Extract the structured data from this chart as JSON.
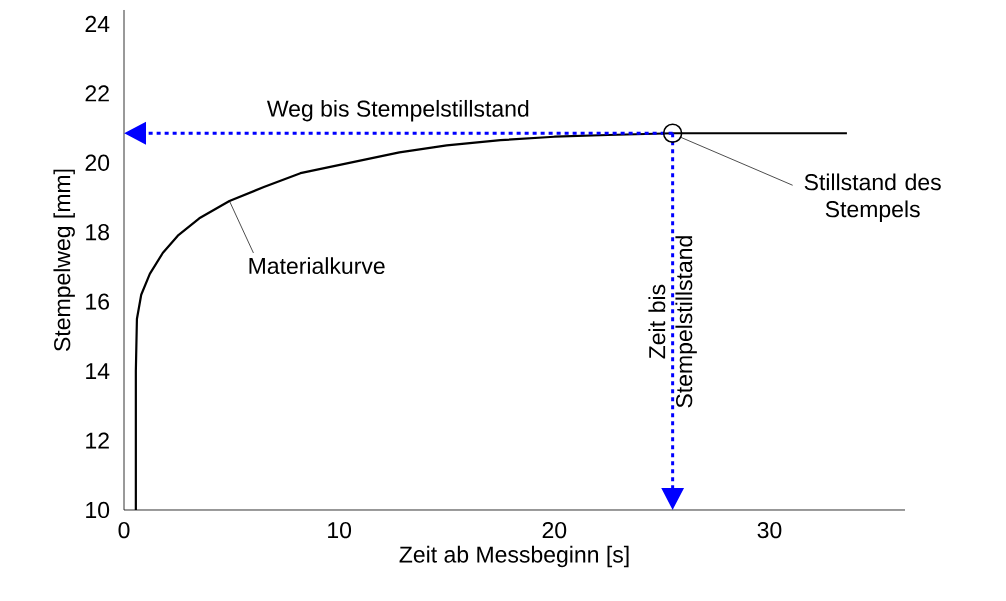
{
  "chart_data": {
    "type": "line",
    "xlabel": "Zeit ab Messbeginn [s]",
    "ylabel": "Stempelweg [mm]",
    "x": [
      0.55,
      0.55,
      0.6,
      0.8,
      1.2,
      1.8,
      2.5,
      3.5,
      4.9,
      6.5,
      8.2,
      10.5,
      12.8,
      15,
      17.5,
      20,
      22.5,
      25.5,
      29,
      33.6
    ],
    "series": [
      {
        "color": "#000000",
        "values": [
          10,
          14,
          15.5,
          16.2,
          16.8,
          17.4,
          17.9,
          18.4,
          18.9,
          19.3,
          19.7,
          20.0,
          20.3,
          20.5,
          20.65,
          20.75,
          20.8,
          20.85,
          20.85,
          20.85
        ]
      }
    ],
    "xlim": [
      0,
      36.3
    ],
    "ylim": [
      10,
      24.4
    ],
    "xticks": [
      0,
      10,
      20,
      30
    ],
    "yticks": [
      10,
      12,
      14,
      16,
      18,
      20,
      22,
      24
    ],
    "grid": false,
    "marker": "none",
    "line_style": "solid",
    "annotations": [
      "Weg bis Stempelstillstand",
      "Zeit bis Stempelstillstand",
      {
        "text": "Stillstand des Stempels",
        "x": 25.5,
        "y": 20.85
      },
      {
        "text": "Materialkurve",
        "x": 4.9,
        "y": 18.9
      }
    ]
  }
}
